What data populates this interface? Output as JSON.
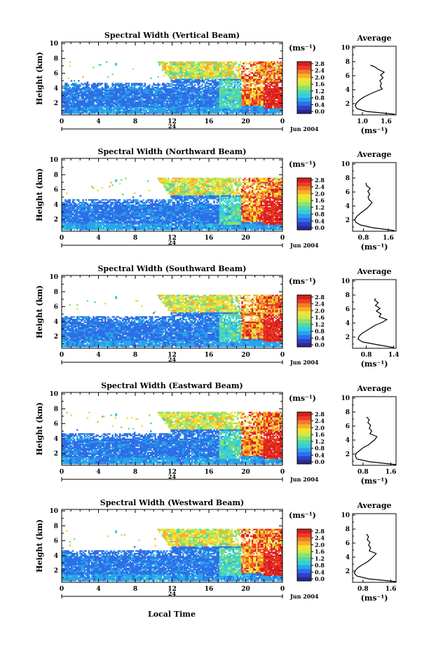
{
  "figure": {
    "xlabel": "Local Time",
    "date_label": "Jun 2004",
    "day_label": "24",
    "cbar_unit": "(ms⁻¹)",
    "avg_title": "Average",
    "avg_unit": "(ms⁻¹)"
  },
  "colorscale": [
    "#2a2a8c",
    "#2f3fd0",
    "#2d6fe6",
    "#2aa3ea",
    "#34cde0",
    "#52d8a8",
    "#8fe06a",
    "#cfe84a",
    "#f4e030",
    "#f8b02a",
    "#f47a28",
    "#ec3c26",
    "#d81e1e"
  ],
  "chart_data": [
    {
      "type": "heatmap",
      "title": "Spectral Width (Vertical Beam)",
      "ylabel": "Height (km)",
      "x_ticks": [
        "0",
        "4",
        "8",
        "12",
        "16",
        "20",
        "0"
      ],
      "xlim": [
        0,
        24
      ],
      "y_ticks": [
        "2",
        "4",
        "6",
        "8",
        "10"
      ],
      "ylim": [
        0.4,
        10.2
      ],
      "colorbar": {
        "ticks": [
          "0.0",
          "0.4",
          "0.8",
          "1.2",
          "1.6",
          "2.0",
          "2.4",
          "2.8"
        ],
        "range": [
          0,
          2.8
        ]
      },
      "average": {
        "x_ticks": [
          "1.0",
          "1.6"
        ],
        "xlim": [
          0.75,
          1.85
        ],
        "ylim": [
          0.4,
          10.2
        ],
        "heights": [
          0.5,
          0.9,
          1.3,
          1.7,
          2.1,
          2.5,
          2.9,
          3.3,
          3.7,
          4.1,
          4.5,
          4.9,
          5.3,
          5.7,
          6.1,
          6.5,
          6.9,
          7.3,
          7.5
        ],
        "values": [
          1.82,
          1.1,
          0.86,
          0.82,
          0.85,
          0.92,
          1.02,
          1.16,
          1.32,
          1.5,
          1.45,
          1.48,
          1.44,
          1.52,
          1.46,
          1.55,
          1.4,
          1.3,
          1.2
        ]
      }
    },
    {
      "type": "heatmap",
      "title": "Spectral Width (Northward Beam)",
      "ylabel": "Height (km)",
      "x_ticks": [
        "0",
        "4",
        "8",
        "12",
        "16",
        "20",
        "0"
      ],
      "xlim": [
        0,
        24
      ],
      "y_ticks": [
        "2",
        "4",
        "6",
        "8",
        "10"
      ],
      "ylim": [
        0.4,
        10.2
      ],
      "colorbar": {
        "ticks": [
          "0.0",
          "0.4",
          "0.8",
          "1.2",
          "1.6",
          "2.0",
          "2.4",
          "2.8"
        ],
        "range": [
          0,
          2.8
        ]
      },
      "average": {
        "x_ticks": [
          "0.8",
          "1.6"
        ],
        "xlim": [
          0.45,
          1.85
        ],
        "ylim": [
          0.4,
          10.2
        ],
        "heights": [
          0.5,
          0.9,
          1.3,
          1.7,
          2.1,
          2.5,
          2.9,
          3.3,
          3.7,
          4.1,
          4.5,
          4.9,
          5.3,
          5.7,
          6.1,
          6.5,
          6.9,
          7.3
        ],
        "values": [
          1.8,
          1.1,
          0.7,
          0.55,
          0.52,
          0.58,
          0.68,
          0.8,
          0.92,
          1.0,
          1.08,
          0.98,
          0.95,
          1.0,
          0.94,
          1.02,
          0.9,
          0.88
        ]
      }
    },
    {
      "type": "heatmap",
      "title": "Spectral Width (Southward Beam)",
      "ylabel": "Height (km)",
      "x_ticks": [
        "0",
        "4",
        "8",
        "12",
        "16",
        "20",
        "0"
      ],
      "xlim": [
        0,
        24
      ],
      "y_ticks": [
        "2",
        "4",
        "6",
        "8",
        "10"
      ],
      "ylim": [
        0.4,
        10.2
      ],
      "colorbar": {
        "ticks": [
          "0.0",
          "0.4",
          "0.8",
          "1.2",
          "1.6",
          "2.0",
          "2.4",
          "2.8"
        ],
        "range": [
          0,
          2.8
        ]
      },
      "average": {
        "x_ticks": [
          "0.8",
          "1.4"
        ],
        "xlim": [
          0.5,
          1.45
        ],
        "ylim": [
          0.4,
          10.2
        ],
        "heights": [
          0.5,
          0.9,
          1.3,
          1.7,
          2.1,
          2.5,
          2.9,
          3.3,
          3.7,
          4.1,
          4.5,
          4.9,
          5.3,
          5.7,
          6.1,
          6.5,
          6.9,
          7.3,
          7.5
        ],
        "values": [
          1.4,
          1.05,
          0.72,
          0.62,
          0.64,
          0.7,
          0.8,
          0.9,
          1.0,
          1.15,
          1.25,
          1.08,
          1.12,
          1.02,
          1.1,
          1.0,
          1.06,
          0.98,
          1.0
        ]
      }
    },
    {
      "type": "heatmap",
      "title": "Spectral Width (Eastward Beam)",
      "ylabel": "Height (km)",
      "x_ticks": [
        "0",
        "4",
        "8",
        "12",
        "16",
        "20",
        "0"
      ],
      "xlim": [
        0,
        24
      ],
      "y_ticks": [
        "2",
        "4",
        "6",
        "8",
        "10"
      ],
      "ylim": [
        0.4,
        10.2
      ],
      "colorbar": {
        "ticks": [
          "0.0",
          "0.4",
          "0.8",
          "1.2",
          "1.6",
          "2.0",
          "2.4",
          "2.8"
        ],
        "range": [
          0,
          2.8
        ]
      },
      "average": {
        "x_ticks": [
          "0.8",
          "1.6"
        ],
        "xlim": [
          0.5,
          1.75
        ],
        "ylim": [
          0.4,
          10.2
        ],
        "heights": [
          0.5,
          0.9,
          1.3,
          1.7,
          2.1,
          2.5,
          2.9,
          3.3,
          3.7,
          4.1,
          4.5,
          4.9,
          5.3,
          5.7,
          6.1,
          6.5,
          6.9,
          7.3
        ],
        "values": [
          1.75,
          1.0,
          0.62,
          0.58,
          0.6,
          0.7,
          0.8,
          0.95,
          1.05,
          1.15,
          1.2,
          1.0,
          1.05,
          0.98,
          1.02,
          0.94,
          0.98,
          0.9
        ]
      }
    },
    {
      "type": "heatmap",
      "title": "Spectral Width (Westward Beam)",
      "ylabel": "Height (km)",
      "x_ticks": [
        "0",
        "4",
        "8",
        "12",
        "16",
        "20",
        "0"
      ],
      "xlim": [
        0,
        24
      ],
      "y_ticks": [
        "2",
        "4",
        "6",
        "8",
        "10"
      ],
      "ylim": [
        0.4,
        10.2
      ],
      "colorbar": {
        "ticks": [
          "0.0",
          "0.4",
          "0.8",
          "1.2",
          "1.6",
          "2.0",
          "2.4",
          "2.8"
        ],
        "range": [
          0,
          2.8
        ]
      },
      "average": {
        "x_ticks": [
          "0.8",
          "1.6"
        ],
        "xlim": [
          0.5,
          1.75
        ],
        "ylim": [
          0.4,
          10.2
        ],
        "heights": [
          0.5,
          0.9,
          1.3,
          1.7,
          2.1,
          2.5,
          2.9,
          3.3,
          3.7,
          4.1,
          4.5,
          4.9,
          5.3,
          5.7,
          6.1,
          6.5,
          6.9,
          7.3
        ],
        "values": [
          1.75,
          0.95,
          0.62,
          0.55,
          0.58,
          0.66,
          0.78,
          0.92,
          1.02,
          1.1,
          1.18,
          0.98,
          1.02,
          0.96,
          1.0,
          0.92,
          0.96,
          0.9
        ]
      }
    }
  ]
}
